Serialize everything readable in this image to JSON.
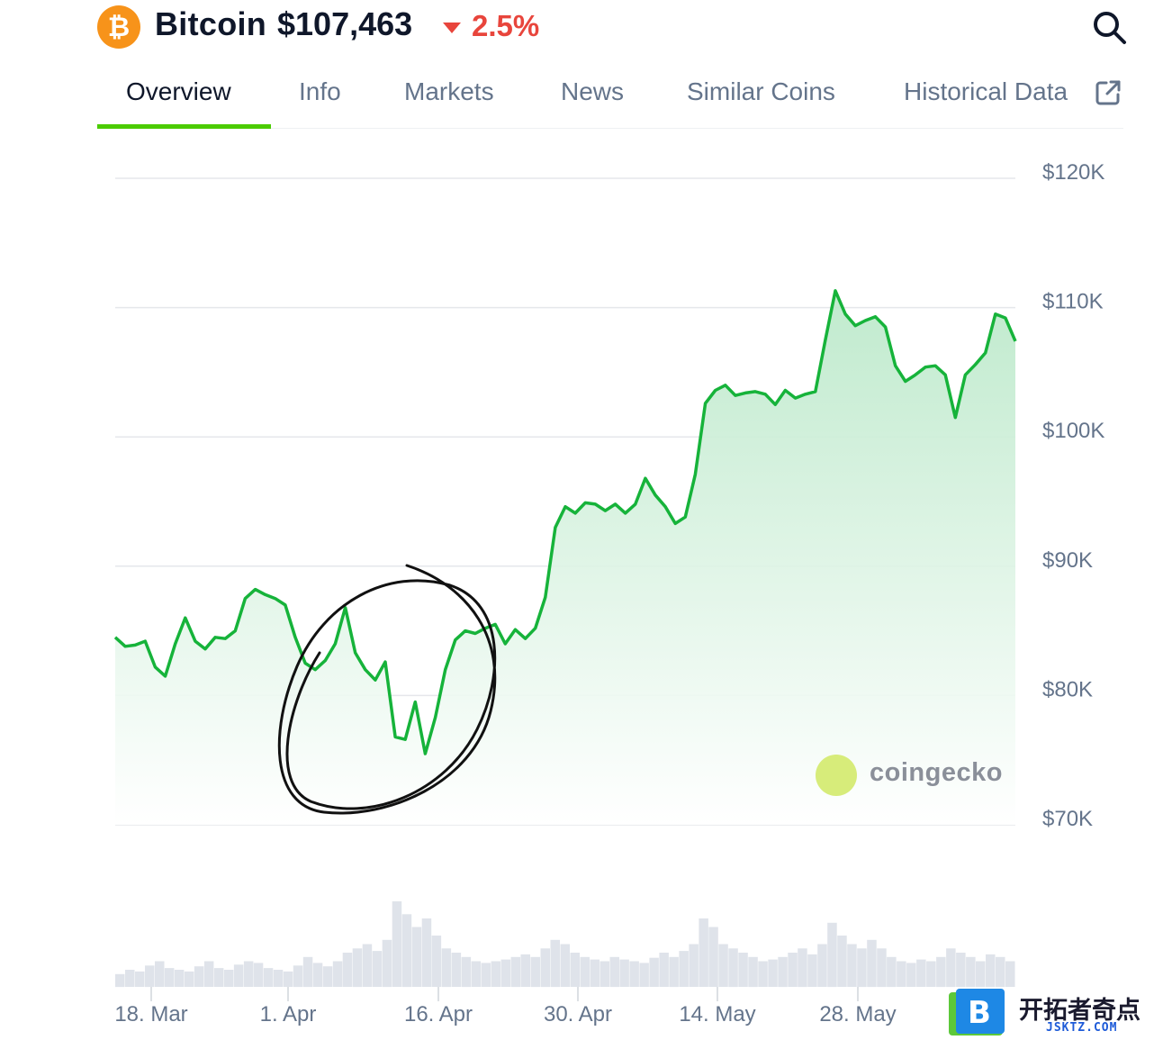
{
  "header": {
    "coin_name": "Bitcoin",
    "price": "$107,463",
    "change": "2.5%",
    "change_direction": "down",
    "logo_icon": "bitcoin-icon",
    "search_icon": "search-icon"
  },
  "tabs": [
    {
      "label": "Overview",
      "active": true
    },
    {
      "label": "Info",
      "active": false
    },
    {
      "label": "Markets",
      "active": false
    },
    {
      "label": "News",
      "active": false
    },
    {
      "label": "Similar Coins",
      "active": false
    },
    {
      "label": "Historical Data",
      "active": false,
      "icon": "external-link-icon"
    }
  ],
  "watermark": {
    "brand": "coingecko"
  },
  "site_watermark": {
    "name": "开拓者奇点",
    "url": "JSKTZ.COM",
    "badge": "B"
  },
  "colors": {
    "line": "#16b33a",
    "area_top": "#b9e8c8",
    "negative": "#e8453c",
    "accent_tab": "#4bcc00",
    "bitcoin": "#f7931a"
  },
  "chart_data": {
    "type": "area",
    "x_tick_labels": [
      "18. Mar",
      "1. Apr",
      "16. Apr",
      "30. Apr",
      "14. May",
      "28. May"
    ],
    "y_tick_labels": [
      "$70K",
      "$80K",
      "$90K",
      "$100K",
      "$110K",
      "$120K"
    ],
    "y_ticks": [
      70000,
      80000,
      90000,
      100000,
      110000,
      120000
    ],
    "ylim": [
      70000,
      120000
    ],
    "y_axis_position": "right",
    "grid": true,
    "series": [
      {
        "values": [
          84500,
          83800,
          83900,
          84200,
          82200,
          81500,
          84000,
          86000,
          84200,
          83600,
          84500,
          84400,
          85000,
          87500,
          88200,
          87800,
          87500,
          87000,
          84500,
          82500,
          82000,
          82700,
          84000,
          86800,
          83300,
          82000,
          81200,
          82600,
          76800,
          76600,
          79500,
          75500,
          78300,
          82000,
          84300,
          85000,
          84800,
          85200,
          85500,
          84000,
          85100,
          84400,
          85200,
          87600,
          93000,
          94600,
          94100,
          94900,
          94800,
          94300,
          94800,
          94100,
          94800,
          96800,
          95500,
          94600,
          93300,
          93800,
          97100,
          102600,
          103600,
          104000,
          103200,
          103400,
          103500,
          103300,
          102500,
          103600,
          103000,
          103300,
          103500,
          107500,
          111300,
          109500,
          108600,
          109000,
          109300,
          108500,
          105500,
          104300,
          104800,
          105400,
          105500,
          104800,
          101500,
          104800,
          105600,
          106500,
          109500,
          109200,
          107400
        ],
        "start_date": "14 Mar",
        "interval_hours": 24
      },
      {
        "name": "Volume",
        "values": [
          0.15,
          0.2,
          0.18,
          0.25,
          0.3,
          0.22,
          0.2,
          0.18,
          0.24,
          0.3,
          0.22,
          0.2,
          0.26,
          0.3,
          0.28,
          0.22,
          0.2,
          0.18,
          0.25,
          0.35,
          0.28,
          0.24,
          0.3,
          0.4,
          0.45,
          0.5,
          0.42,
          0.55,
          1.0,
          0.85,
          0.7,
          0.8,
          0.6,
          0.45,
          0.4,
          0.35,
          0.3,
          0.28,
          0.3,
          0.32,
          0.35,
          0.38,
          0.35,
          0.45,
          0.55,
          0.5,
          0.4,
          0.35,
          0.32,
          0.3,
          0.35,
          0.32,
          0.3,
          0.28,
          0.34,
          0.4,
          0.35,
          0.42,
          0.5,
          0.8,
          0.7,
          0.5,
          0.45,
          0.4,
          0.35,
          0.3,
          0.32,
          0.35,
          0.4,
          0.45,
          0.38,
          0.5,
          0.75,
          0.6,
          0.5,
          0.45,
          0.55,
          0.45,
          0.35,
          0.3,
          0.28,
          0.32,
          0.3,
          0.35,
          0.45,
          0.4,
          0.35,
          0.3,
          0.38,
          0.35,
          0.3
        ]
      }
    ]
  }
}
